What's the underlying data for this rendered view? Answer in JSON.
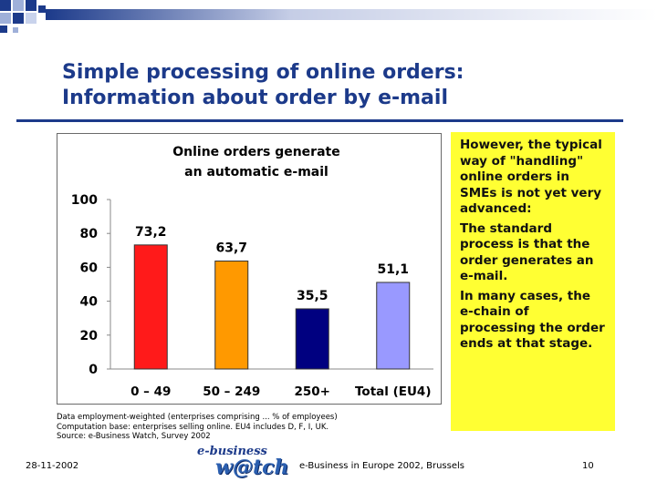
{
  "slide": {
    "title_line1": "Simple processing of online orders:",
    "title_line2": "Information about order by e-mail",
    "colors": {
      "title": "#1c3a8a",
      "note_bg": "#ffff33"
    }
  },
  "chart_data": {
    "type": "bar",
    "title_line1": "Online orders generate",
    "title_line2": "an automatic e-mail",
    "categories": [
      "0 – 49",
      "50 – 249",
      "250+",
      "Total (EU4)"
    ],
    "values": [
      73.2,
      63.7,
      35.5,
      51.1
    ],
    "value_labels": [
      "73,2",
      "63,7",
      "35,5",
      "51,1"
    ],
    "bar_colors": [
      "#ff1a1a",
      "#ff9900",
      "#000080",
      "#9999ff"
    ],
    "ylim": [
      0,
      100
    ],
    "yticks": [
      0,
      20,
      40,
      60,
      80,
      100
    ],
    "xlabel": "",
    "ylabel": "",
    "grid": false,
    "legend": "none"
  },
  "source_notes": [
    "Data employment-weighted (enterprises comprising ... % of employees)",
    "Computation base: enterprises selling online. EU4 includes D, F, I, UK.",
    "Source: e-Business Watch, Survey 2002"
  ],
  "note_paragraphs": [
    "However, the typical way of \"handling\" online orders in SMEs is not yet very advanced:",
    "The standard process is that the order generates an e-mail.",
    "In many cases, the e-chain of processing the order ends at that stage."
  ],
  "footer": {
    "date": "28-11-2002",
    "event": "e-Business in Europe 2002, Brussels",
    "page": "10",
    "logo_top": "e-business",
    "logo_bottom": "w@tch"
  }
}
